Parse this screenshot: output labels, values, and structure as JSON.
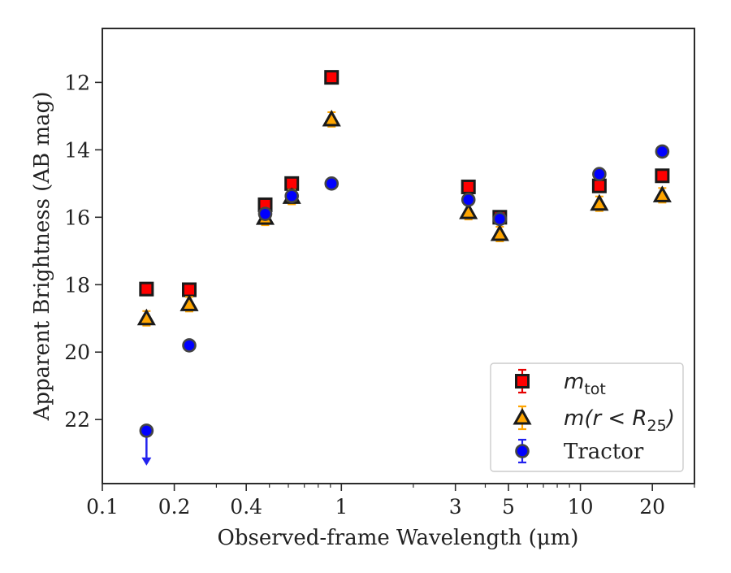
{
  "chart_data": {
    "type": "scatter",
    "xlabel": "Observed-frame Wavelength (μm)",
    "ylabel": "Apparent Brightness (AB mag)",
    "xscale": "log",
    "xlim": [
      0.1,
      30
    ],
    "ylim": [
      23.9,
      10.4
    ],
    "y_inverted": true,
    "grid": false,
    "legend_position": "lower-right",
    "x_ticks": [
      {
        "value": 0.1,
        "label": "0.1"
      },
      {
        "value": 0.2,
        "label": "0.2"
      },
      {
        "value": 0.4,
        "label": "0.4"
      },
      {
        "value": 1,
        "label": "1"
      },
      {
        "value": 3,
        "label": "3"
      },
      {
        "value": 5,
        "label": "5"
      },
      {
        "value": 10,
        "label": "10"
      },
      {
        "value": 20,
        "label": "20"
      }
    ],
    "y_ticks": [
      {
        "value": 12,
        "label": "12"
      },
      {
        "value": 14,
        "label": "14"
      },
      {
        "value": 16,
        "label": "16"
      },
      {
        "value": 18,
        "label": "18"
      },
      {
        "value": 20,
        "label": "20"
      },
      {
        "value": 22,
        "label": "22"
      }
    ],
    "series": [
      {
        "name": "m_tot",
        "label_main": "m",
        "label_sub": "tot",
        "marker": "square",
        "color": "#ff0000",
        "errcolor": "#e60000",
        "points": [
          {
            "x": 0.153,
            "y": 18.13
          },
          {
            "x": 0.231,
            "y": 18.15
          },
          {
            "x": 0.48,
            "y": 15.63
          },
          {
            "x": 0.62,
            "y": 15.0
          },
          {
            "x": 0.91,
            "y": 11.85
          },
          {
            "x": 3.4,
            "y": 15.1
          },
          {
            "x": 4.6,
            "y": 16.0
          },
          {
            "x": 12.0,
            "y": 15.07
          },
          {
            "x": 22.0,
            "y": 14.77
          }
        ]
      },
      {
        "name": "m(r < R_25)",
        "label_main": "m(r < R",
        "label_sub": "25",
        "label_end": ")",
        "marker": "triangle",
        "color": "#ffa500",
        "errcolor": "#ffa500",
        "points": [
          {
            "x": 0.153,
            "y": 19.0
          },
          {
            "x": 0.231,
            "y": 18.58
          },
          {
            "x": 0.48,
            "y": 16.02
          },
          {
            "x": 0.62,
            "y": 15.4
          },
          {
            "x": 0.91,
            "y": 13.1
          },
          {
            "x": 3.4,
            "y": 15.85
          },
          {
            "x": 4.6,
            "y": 16.5
          },
          {
            "x": 12.0,
            "y": 15.6
          },
          {
            "x": 22.0,
            "y": 15.35
          }
        ]
      },
      {
        "name": "Tractor",
        "label_main": "Tractor",
        "marker": "circle",
        "color": "#0000ff",
        "errcolor": "#2222ee",
        "points": [
          {
            "x": 0.153,
            "y": 22.33,
            "upper_limit": true
          },
          {
            "x": 0.231,
            "y": 19.8
          },
          {
            "x": 0.48,
            "y": 15.9
          },
          {
            "x": 0.62,
            "y": 15.37
          },
          {
            "x": 0.91,
            "y": 15.0
          },
          {
            "x": 3.4,
            "y": 15.48
          },
          {
            "x": 4.6,
            "y": 16.05
          },
          {
            "x": 12.0,
            "y": 14.72
          },
          {
            "x": 22.0,
            "y": 14.05
          }
        ]
      }
    ]
  }
}
